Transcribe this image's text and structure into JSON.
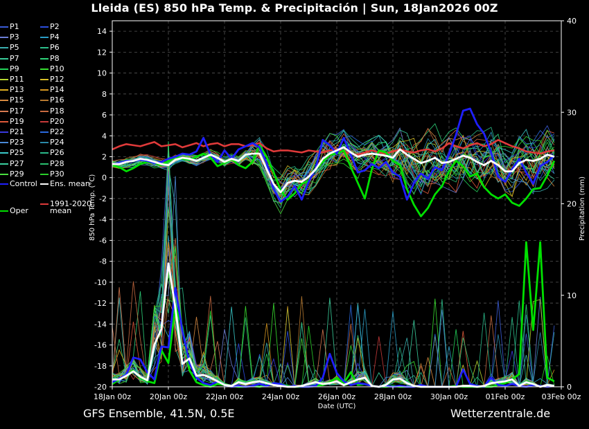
{
  "header": {
    "title": "Lleida  (ES)  850 hPa Temp. & Precipitación | Sun, 18Jan2026 00Z"
  },
  "footer": {
    "model": "GFS Ensemble, 41.5N, 0.5E",
    "site": "Wetterzentrale.de"
  },
  "colors": {
    "background": "#000000",
    "grid": "#555555",
    "axis": "#ffffff",
    "ens_mean": "#ffffff",
    "control": "#1f1fff",
    "oper": "#00e000",
    "clim_mean": "#e03a3a"
  },
  "legend": [
    {
      "label": "P1",
      "color": "#3a5cd8"
    },
    {
      "label": "P2",
      "color": "#2c4fe0"
    },
    {
      "label": "P3",
      "color": "#6c7fd8"
    },
    {
      "label": "P4",
      "color": "#2a9ec8"
    },
    {
      "label": "P5",
      "color": "#3ab0b0"
    },
    {
      "label": "P6",
      "color": "#2cc08c"
    },
    {
      "label": "P7",
      "color": "#3acd9a"
    },
    {
      "label": "P8",
      "color": "#2ed47a"
    },
    {
      "label": "P9",
      "color": "#22d45a"
    },
    {
      "label": "P10",
      "color": "#38e030"
    },
    {
      "label": "P11",
      "color": "#b8d830"
    },
    {
      "label": "P12",
      "color": "#d8c028"
    },
    {
      "label": "P13",
      "color": "#e0b020"
    },
    {
      "label": "P14",
      "color": "#d89820"
    },
    {
      "label": "P15",
      "color": "#d88a40"
    },
    {
      "label": "P16",
      "color": "#b87a30"
    },
    {
      "label": "P17",
      "color": "#d87a50"
    },
    {
      "label": "P18",
      "color": "#c86a40"
    },
    {
      "label": "P19",
      "color": "#e05a3a"
    },
    {
      "label": "P20",
      "color": "#c83a3a"
    },
    {
      "label": "P21",
      "color": "#3a3ae0"
    },
    {
      "label": "P22",
      "color": "#2a6ae0"
    },
    {
      "label": "P23",
      "color": "#4a8ad8"
    },
    {
      "label": "P24",
      "color": "#2a8aa8"
    },
    {
      "label": "P25",
      "color": "#3acaca"
    },
    {
      "label": "P26",
      "color": "#2aba8a"
    },
    {
      "label": "P27",
      "color": "#3ad0a0"
    },
    {
      "label": "P28",
      "color": "#2ac070"
    },
    {
      "label": "P29",
      "color": "#4ae040"
    },
    {
      "label": "P30",
      "color": "#2ad02a"
    },
    {
      "label": "Control",
      "color": "#1f1fff"
    },
    {
      "label": "Ens. mean",
      "color": "#ffffff"
    },
    {
      "label": "1991-2020 mean",
      "color": "#e03a3a"
    },
    {
      "label": "Oper",
      "color": "#00e000"
    }
  ],
  "chart_data": {
    "type": "line",
    "xlabel": "Date (UTC)",
    "ylabel": "850 hPa Temp. (°C)",
    "y2label": "Precipitation (mm)",
    "ylim": [
      -20,
      15
    ],
    "y2lim": [
      0,
      40
    ],
    "x_ticks": [
      "18Jan 00z",
      "20Jan 00z",
      "22Jan 00z",
      "24Jan 00z",
      "26Jan 00z",
      "28Jan 00z",
      "30Jan 00z",
      "01Feb 00z",
      "03Feb 00z"
    ],
    "y_ticks": [
      14,
      12,
      10,
      8,
      6,
      4,
      2,
      0,
      -2,
      -4,
      -6,
      -8,
      -10,
      -12,
      -14,
      -16,
      -18,
      -20
    ],
    "y2_ticks": [
      40,
      30,
      20,
      10,
      0
    ],
    "x_step_hours": 6,
    "grid": true,
    "legend_position": "left",
    "series": [
      {
        "name": "1991-2020 mean",
        "axis": "temp",
        "color": "#e03a3a",
        "values": [
          2.7,
          3.0,
          3.2,
          3.1,
          3.0,
          3.2,
          3.4,
          3.0,
          3.1,
          3.2,
          2.9,
          3.1,
          3.3,
          3.0,
          3.2,
          3.3,
          3.0,
          3.2,
          3.2,
          3.0,
          3.1,
          3.3,
          2.8,
          2.5,
          2.6,
          2.6,
          2.5,
          2.4,
          2.6,
          2.5,
          2.4,
          2.6,
          2.7,
          2.5,
          2.3,
          2.2,
          2.4,
          2.6,
          2.4,
          2.3,
          2.5,
          2.7,
          2.5,
          2.4,
          2.6,
          2.7,
          2.5,
          2.8,
          3.3,
          3.0,
          2.8,
          3.1,
          3.3,
          3.0,
          3.2,
          3.6,
          3.3,
          3.0,
          2.8,
          2.5,
          2.4,
          2.3,
          2.5,
          2.6
        ]
      },
      {
        "name": "Oper",
        "axis": "temp",
        "color": "#00e000",
        "values": [
          1.2,
          1.0,
          0.6,
          0.9,
          1.3,
          1.5,
          1.4,
          1.2,
          1.6,
          2.0,
          1.8,
          1.7,
          2.0,
          2.3,
          1.9,
          1.1,
          1.4,
          1.8,
          1.2,
          0.9,
          1.5,
          3.1,
          2.0,
          0.5,
          -1.2,
          -2.1,
          -1.5,
          -0.6,
          -0.3,
          0.8,
          1.5,
          2.2,
          2.3,
          2.6,
          1.0,
          -0.5,
          -2.0,
          0.8,
          2.6,
          2.4,
          1.6,
          1.2,
          -1.1,
          -2.6,
          -3.7,
          -2.9,
          -1.6,
          -0.8,
          0.6,
          1.6,
          1.1,
          0.1,
          0.4,
          -0.9,
          -1.6,
          -2.0,
          -1.6,
          -2.4,
          -2.7,
          -2.0,
          -1.1,
          -1.0,
          0.2,
          1.6
        ]
      },
      {
        "name": "Control",
        "axis": "temp",
        "color": "#1f1fff",
        "values": [
          1.3,
          1.4,
          1.6,
          1.6,
          1.7,
          1.6,
          1.4,
          1.5,
          1.8,
          2.0,
          2.3,
          2.2,
          2.5,
          3.8,
          2.2,
          1.5,
          2.6,
          1.8,
          2.7,
          3.0,
          3.3,
          2.9,
          1.4,
          -1.1,
          -2.3,
          -1.8,
          -0.8,
          -2.1,
          -0.4,
          0.9,
          3.6,
          3.1,
          2.3,
          3.8,
          2.2,
          0.5,
          0.7,
          1.3,
          0.9,
          1.5,
          0.5,
          0.1,
          -2.1,
          -0.5,
          0.4,
          -0.1,
          1.0,
          0.7,
          2.2,
          4.1,
          6.4,
          6.6,
          5.1,
          4.2,
          2.4,
          0.1,
          -0.4,
          0.8,
          1.8,
          0.5,
          -0.6,
          1.1,
          1.5,
          2.1
        ]
      },
      {
        "name": "Ens. mean",
        "axis": "temp",
        "color": "#ffffff",
        "values": [
          1.3,
          1.3,
          1.5,
          1.6,
          1.8,
          1.7,
          1.5,
          1.3,
          1.2,
          1.7,
          1.9,
          1.8,
          1.6,
          1.9,
          2.2,
          1.9,
          1.5,
          1.8,
          1.6,
          2.2,
          2.3,
          2.3,
          0.8,
          -0.6,
          -1.4,
          -0.5,
          -0.3,
          -0.4,
          0.1,
          0.8,
          1.8,
          2.3,
          2.6,
          2.9,
          2.4,
          2.0,
          2.2,
          2.3,
          2.2,
          2.1,
          1.9,
          2.7,
          2.2,
          1.8,
          1.4,
          1.6,
          1.9,
          1.4,
          1.5,
          1.8,
          2.1,
          1.9,
          1.5,
          1.2,
          1.6,
          1.2,
          0.6,
          0.6,
          1.4,
          1.7,
          1.6,
          1.8,
          2.2,
          2.0
        ]
      },
      {
        "name": "Oper",
        "axis": "precip",
        "color": "#00e000",
        "values": [
          0.3,
          0.8,
          1.2,
          1.8,
          1.0,
          0.6,
          0.4,
          4.0,
          2.6,
          8.8,
          6.5,
          1.8,
          0.5,
          0.2,
          0.0,
          0.3,
          0.2,
          0.1,
          0.0,
          0.0,
          0.1,
          0.0,
          0.2,
          0.4,
          0.3,
          0.1,
          0.0,
          0.0,
          0.0,
          0.1,
          0.2,
          0.5,
          1.0,
          0.4,
          1.6,
          0.2,
          0.3,
          0.1,
          0.0,
          0.0,
          0.1,
          0.0,
          0.0,
          0.1,
          0.0,
          0.0,
          0.0,
          0.0,
          0.0,
          0.1,
          0.0,
          0.0,
          0.0,
          0.0,
          0.0,
          0.2,
          0.4,
          0.8,
          1.4,
          15.8,
          6.2,
          15.8,
          1.0,
          0.6
        ]
      },
      {
        "name": "Control",
        "axis": "precip",
        "color": "#1f1fff",
        "values": [
          0.5,
          0.9,
          1.3,
          3.2,
          3.0,
          1.6,
          0.8,
          4.4,
          4.3,
          10.8,
          6.1,
          2.6,
          1.0,
          0.4,
          0.2,
          0.6,
          0.2,
          0.0,
          0.1,
          0.0,
          0.1,
          0.3,
          0.1,
          0.4,
          0.3,
          0.0,
          0.1,
          0.0,
          0.0,
          0.1,
          1.0,
          3.6,
          1.5,
          0.6,
          0.2,
          0.4,
          0.3,
          0.1,
          0.0,
          0.1,
          0.0,
          0.1,
          0.0,
          0.0,
          0.2,
          0.0,
          0.0,
          0.0,
          0.0,
          0.0,
          1.9,
          0.3,
          0.1,
          0.0,
          1.0,
          0.2,
          0.1,
          0.3,
          0.1,
          0.0,
          0.2,
          0.1,
          0.0,
          0.1
        ]
      },
      {
        "name": "Ens. mean",
        "axis": "precip",
        "color": "#ffffff",
        "values": [
          0.8,
          0.8,
          1.2,
          1.7,
          1.1,
          0.7,
          4.6,
          6.3,
          13.5,
          8.6,
          2.5,
          3.1,
          1.2,
          1.3,
          1.0,
          0.6,
          0.2,
          0.1,
          0.5,
          0.3,
          0.5,
          0.6,
          0.4,
          0.2,
          0.1,
          0.0,
          0.0,
          0.1,
          0.3,
          0.5,
          0.3,
          0.4,
          0.6,
          0.2,
          0.5,
          0.8,
          1.0,
          0.1,
          0.0,
          0.2,
          0.8,
          0.9,
          0.4,
          0.1,
          0.0,
          0.0,
          0.0,
          0.0,
          0.0,
          0.0,
          0.1,
          0.1,
          0.0,
          0.1,
          0.4,
          0.5,
          0.6,
          0.8,
          0.1,
          0.5,
          0.3,
          0.0,
          0.2,
          0.1
        ]
      }
    ]
  }
}
